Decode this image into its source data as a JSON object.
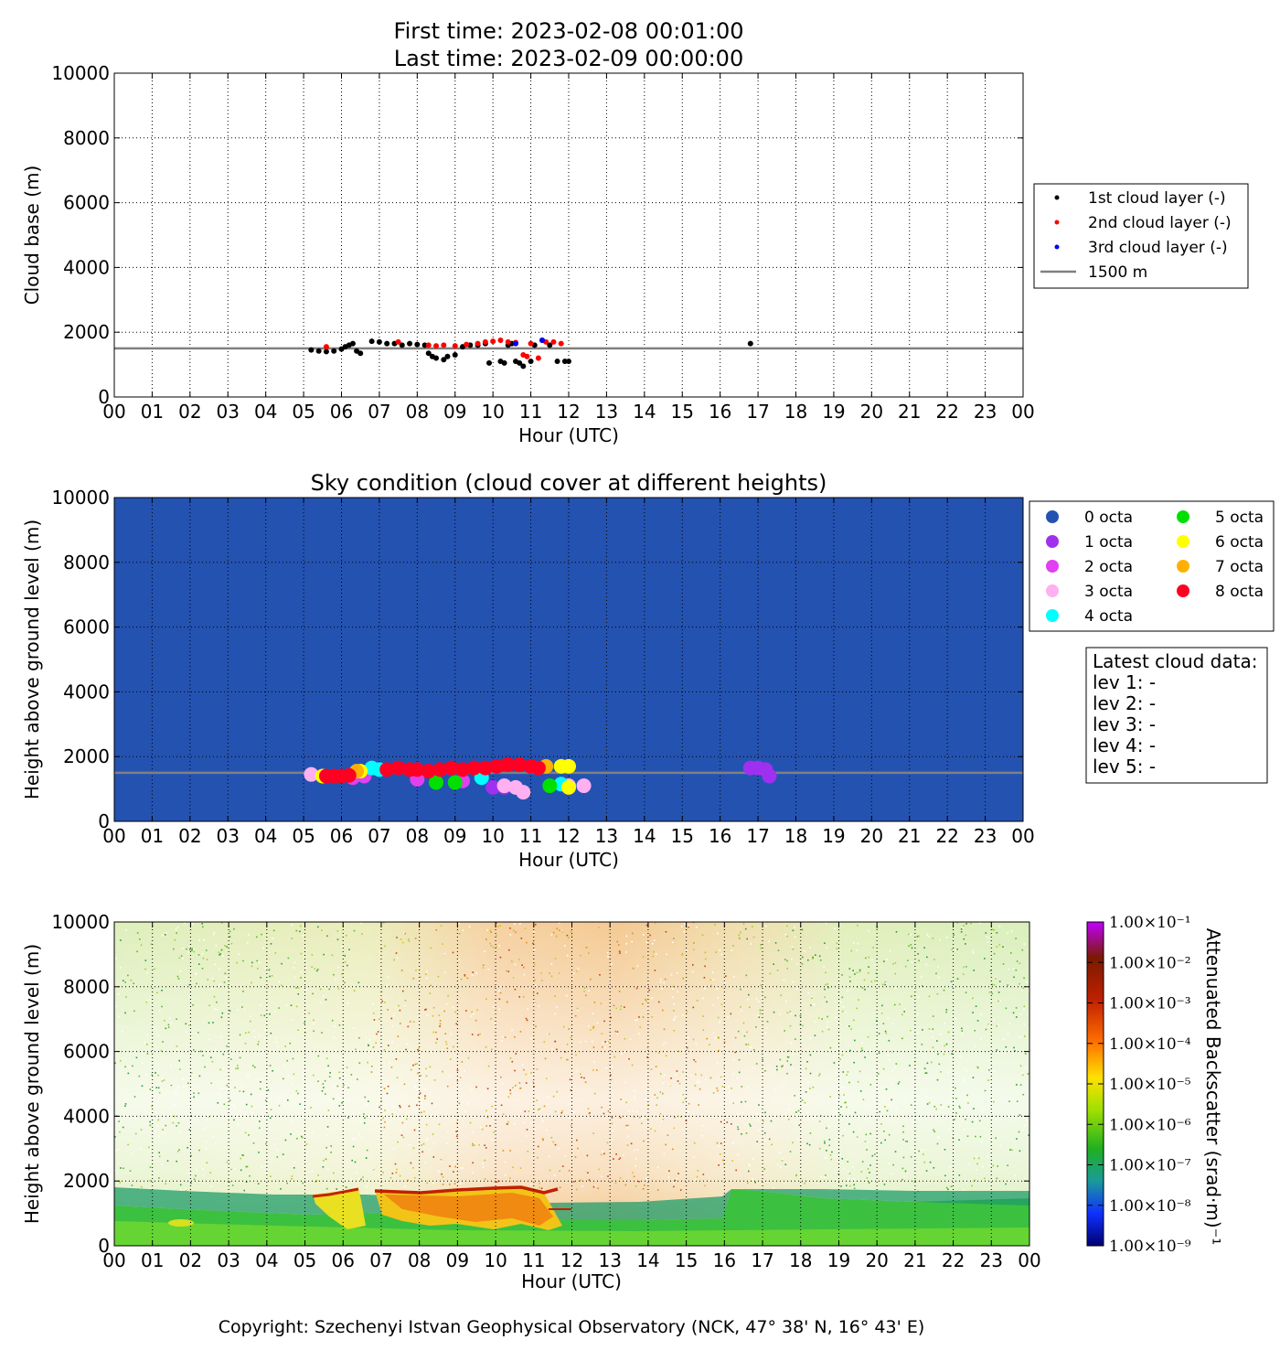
{
  "header": {
    "first_time": "First time: 2023-02-08 00:01:00",
    "last_time": "Last time: 2023-02-09 00:00:00"
  },
  "hour_ticks": [
    "00",
    "01",
    "02",
    "03",
    "04",
    "05",
    "06",
    "07",
    "08",
    "09",
    "10",
    "11",
    "12",
    "13",
    "14",
    "15",
    "16",
    "17",
    "18",
    "19",
    "20",
    "21",
    "22",
    "23",
    "00"
  ],
  "height_ticks": [
    "0",
    "2000",
    "4000",
    "6000",
    "8000",
    "10000"
  ],
  "xlabel": "Hour (UTC)",
  "copyright": "Copyright: Szechenyi Istvan Geophysical Observatory (NCK, 47° 38' N, 16° 43' E)",
  "colors": {
    "first_layer": "#000000",
    "second_layer": "#ff0000",
    "third_layer": "#0000ff",
    "reference_line": "#808080",
    "sky_background": "#2452b0"
  },
  "chart_data": [
    {
      "id": "cloud-base",
      "type": "scatter",
      "ylabel": "Cloud base (m)",
      "xlabel": "Hour (UTC)",
      "xlim": [
        0,
        24
      ],
      "ylim": [
        0,
        10000
      ],
      "grid": true,
      "legend_position": "right-outside",
      "reference_line": {
        "y": 1500,
        "label": "1500 m",
        "color": "#808080"
      },
      "series": [
        {
          "name": "1st cloud layer (-)",
          "color": "#000000",
          "points": [
            [
              5.2,
              1450
            ],
            [
              5.4,
              1420
            ],
            [
              5.6,
              1400
            ],
            [
              5.8,
              1420
            ],
            [
              6.0,
              1480
            ],
            [
              6.1,
              1550
            ],
            [
              6.2,
              1600
            ],
            [
              6.3,
              1650
            ],
            [
              6.4,
              1420
            ],
            [
              6.5,
              1350
            ],
            [
              6.8,
              1720
            ],
            [
              7.0,
              1700
            ],
            [
              7.2,
              1650
            ],
            [
              7.4,
              1650
            ],
            [
              7.6,
              1600
            ],
            [
              7.8,
              1650
            ],
            [
              8.0,
              1620
            ],
            [
              8.2,
              1600
            ],
            [
              8.3,
              1350
            ],
            [
              8.4,
              1250
            ],
            [
              8.5,
              1200
            ],
            [
              8.7,
              1150
            ],
            [
              8.8,
              1250
            ],
            [
              9.0,
              1300
            ],
            [
              9.2,
              1550
            ],
            [
              9.4,
              1600
            ],
            [
              9.6,
              1600
            ],
            [
              9.8,
              1650
            ],
            [
              9.9,
              1050
            ],
            [
              10.2,
              1100
            ],
            [
              10.3,
              1050
            ],
            [
              10.4,
              1600
            ],
            [
              10.5,
              1650
            ],
            [
              10.6,
              1100
            ],
            [
              10.7,
              1050
            ],
            [
              10.8,
              950
            ],
            [
              11.0,
              1100
            ],
            [
              11.1,
              1600
            ],
            [
              11.3,
              1750
            ],
            [
              11.5,
              1600
            ],
            [
              11.7,
              1100
            ],
            [
              11.9,
              1100
            ],
            [
              12.0,
              1100
            ],
            [
              16.8,
              1650
            ]
          ]
        },
        {
          "name": "2nd cloud layer (-)",
          "color": "#ff0000",
          "points": [
            [
              5.6,
              1550
            ],
            [
              7.5,
              1700
            ],
            [
              8.3,
              1600
            ],
            [
              8.5,
              1580
            ],
            [
              8.7,
              1600
            ],
            [
              9.0,
              1580
            ],
            [
              9.3,
              1620
            ],
            [
              9.6,
              1650
            ],
            [
              9.8,
              1700
            ],
            [
              10.0,
              1720
            ],
            [
              10.2,
              1750
            ],
            [
              10.4,
              1700
            ],
            [
              10.6,
              1680
            ],
            [
              10.8,
              1300
            ],
            [
              10.9,
              1250
            ],
            [
              11.0,
              1650
            ],
            [
              11.2,
              1200
            ],
            [
              11.4,
              1700
            ],
            [
              11.6,
              1700
            ],
            [
              11.8,
              1650
            ]
          ]
        },
        {
          "name": "3rd cloud layer (-)",
          "color": "#0000ff",
          "points": [
            [
              10.6,
              1650
            ],
            [
              11.3,
              1750
            ]
          ]
        }
      ]
    },
    {
      "id": "sky-condition",
      "type": "scatter",
      "title": "Sky condition (cloud cover at different heights)",
      "ylabel": "Height above ground level (m)",
      "xlabel": "Hour (UTC)",
      "xlim": [
        0,
        24
      ],
      "ylim": [
        0,
        10000
      ],
      "grid": true,
      "background": "#2452b0",
      "legend_position": "right-outside",
      "reference_line": {
        "y": 1500,
        "color": "#808080"
      },
      "series": [
        {
          "name": "0 octa",
          "color": "#2452b0",
          "points": []
        },
        {
          "name": "1 octa",
          "color": "#a030f0",
          "points": [
            [
              16.8,
              1650
            ],
            [
              17.0,
              1650
            ],
            [
              17.2,
              1600
            ],
            [
              17.3,
              1400
            ],
            [
              10.0,
              1050
            ],
            [
              10.3,
              1050
            ]
          ]
        },
        {
          "name": "2 octa",
          "color": "#e040f0",
          "points": [
            [
              6.3,
              1350
            ],
            [
              6.6,
              1400
            ],
            [
              8.0,
              1300
            ],
            [
              9.2,
              1250
            ]
          ]
        },
        {
          "name": "3 octa",
          "color": "#ffb0f0",
          "points": [
            [
              5.2,
              1450
            ],
            [
              10.3,
              1100
            ],
            [
              10.6,
              1050
            ],
            [
              10.8,
              900
            ],
            [
              12.0,
              1100
            ],
            [
              12.4,
              1100
            ]
          ]
        },
        {
          "name": "4 octa",
          "color": "#00ffff",
          "points": [
            [
              6.8,
              1650
            ],
            [
              7.0,
              1600
            ],
            [
              9.7,
              1350
            ],
            [
              11.8,
              1150
            ]
          ]
        },
        {
          "name": "5 octa",
          "color": "#00e000",
          "points": [
            [
              8.5,
              1200
            ],
            [
              9.0,
              1200
            ],
            [
              11.5,
              1100
            ]
          ]
        },
        {
          "name": "6 octa",
          "color": "#ffff00",
          "points": [
            [
              5.5,
              1400
            ],
            [
              6.5,
              1550
            ],
            [
              11.8,
              1700
            ],
            [
              12.0,
              1700
            ],
            [
              12.0,
              1050
            ]
          ]
        },
        {
          "name": "7 octa",
          "color": "#ffb000",
          "points": [
            [
              6.4,
              1550
            ],
            [
              11.4,
              1700
            ]
          ]
        },
        {
          "name": "8 octa",
          "color": "#ff0022",
          "points": [
            [
              5.6,
              1400
            ],
            [
              5.8,
              1400
            ],
            [
              6.0,
              1400
            ],
            [
              6.2,
              1420
            ],
            [
              7.2,
              1600
            ],
            [
              7.5,
              1650
            ],
            [
              7.8,
              1600
            ],
            [
              8.0,
              1600
            ],
            [
              8.3,
              1550
            ],
            [
              8.6,
              1600
            ],
            [
              8.9,
              1650
            ],
            [
              9.2,
              1600
            ],
            [
              9.5,
              1650
            ],
            [
              9.8,
              1650
            ],
            [
              10.1,
              1700
            ],
            [
              10.4,
              1750
            ],
            [
              10.7,
              1750
            ],
            [
              11.0,
              1700
            ],
            [
              11.2,
              1650
            ]
          ]
        }
      ],
      "latest_cloud_data": {
        "title": "Latest cloud data:",
        "levels": [
          "lev 1: -",
          "lev 2: -",
          "lev 3: -",
          "lev 4: -",
          "lev 5: -"
        ]
      }
    },
    {
      "id": "backscatter",
      "type": "heatmap",
      "ylabel": "Height above ground level (m)",
      "xlabel": "Hour (UTC)",
      "xlim": [
        0,
        24
      ],
      "ylim": [
        0,
        10000
      ],
      "colorbar": {
        "label": "Attenuated Backscatter (srad·m)⁻¹",
        "scale": "log",
        "ticks": [
          "1.00×10⁻¹",
          "1.00×10⁻²",
          "1.00×10⁻³",
          "1.00×10⁻⁴",
          "1.00×10⁻⁵",
          "1.00×10⁻⁶",
          "1.00×10⁻⁷",
          "1.00×10⁻⁸",
          "1.00×10⁻⁹"
        ],
        "colors": [
          "#a000ff",
          "#7a1a00",
          "#d03000",
          "#ff7000",
          "#ffd000",
          "#a0e000",
          "#20b020",
          "#2090c0",
          "#1030ff",
          "#000080"
        ]
      }
    }
  ]
}
